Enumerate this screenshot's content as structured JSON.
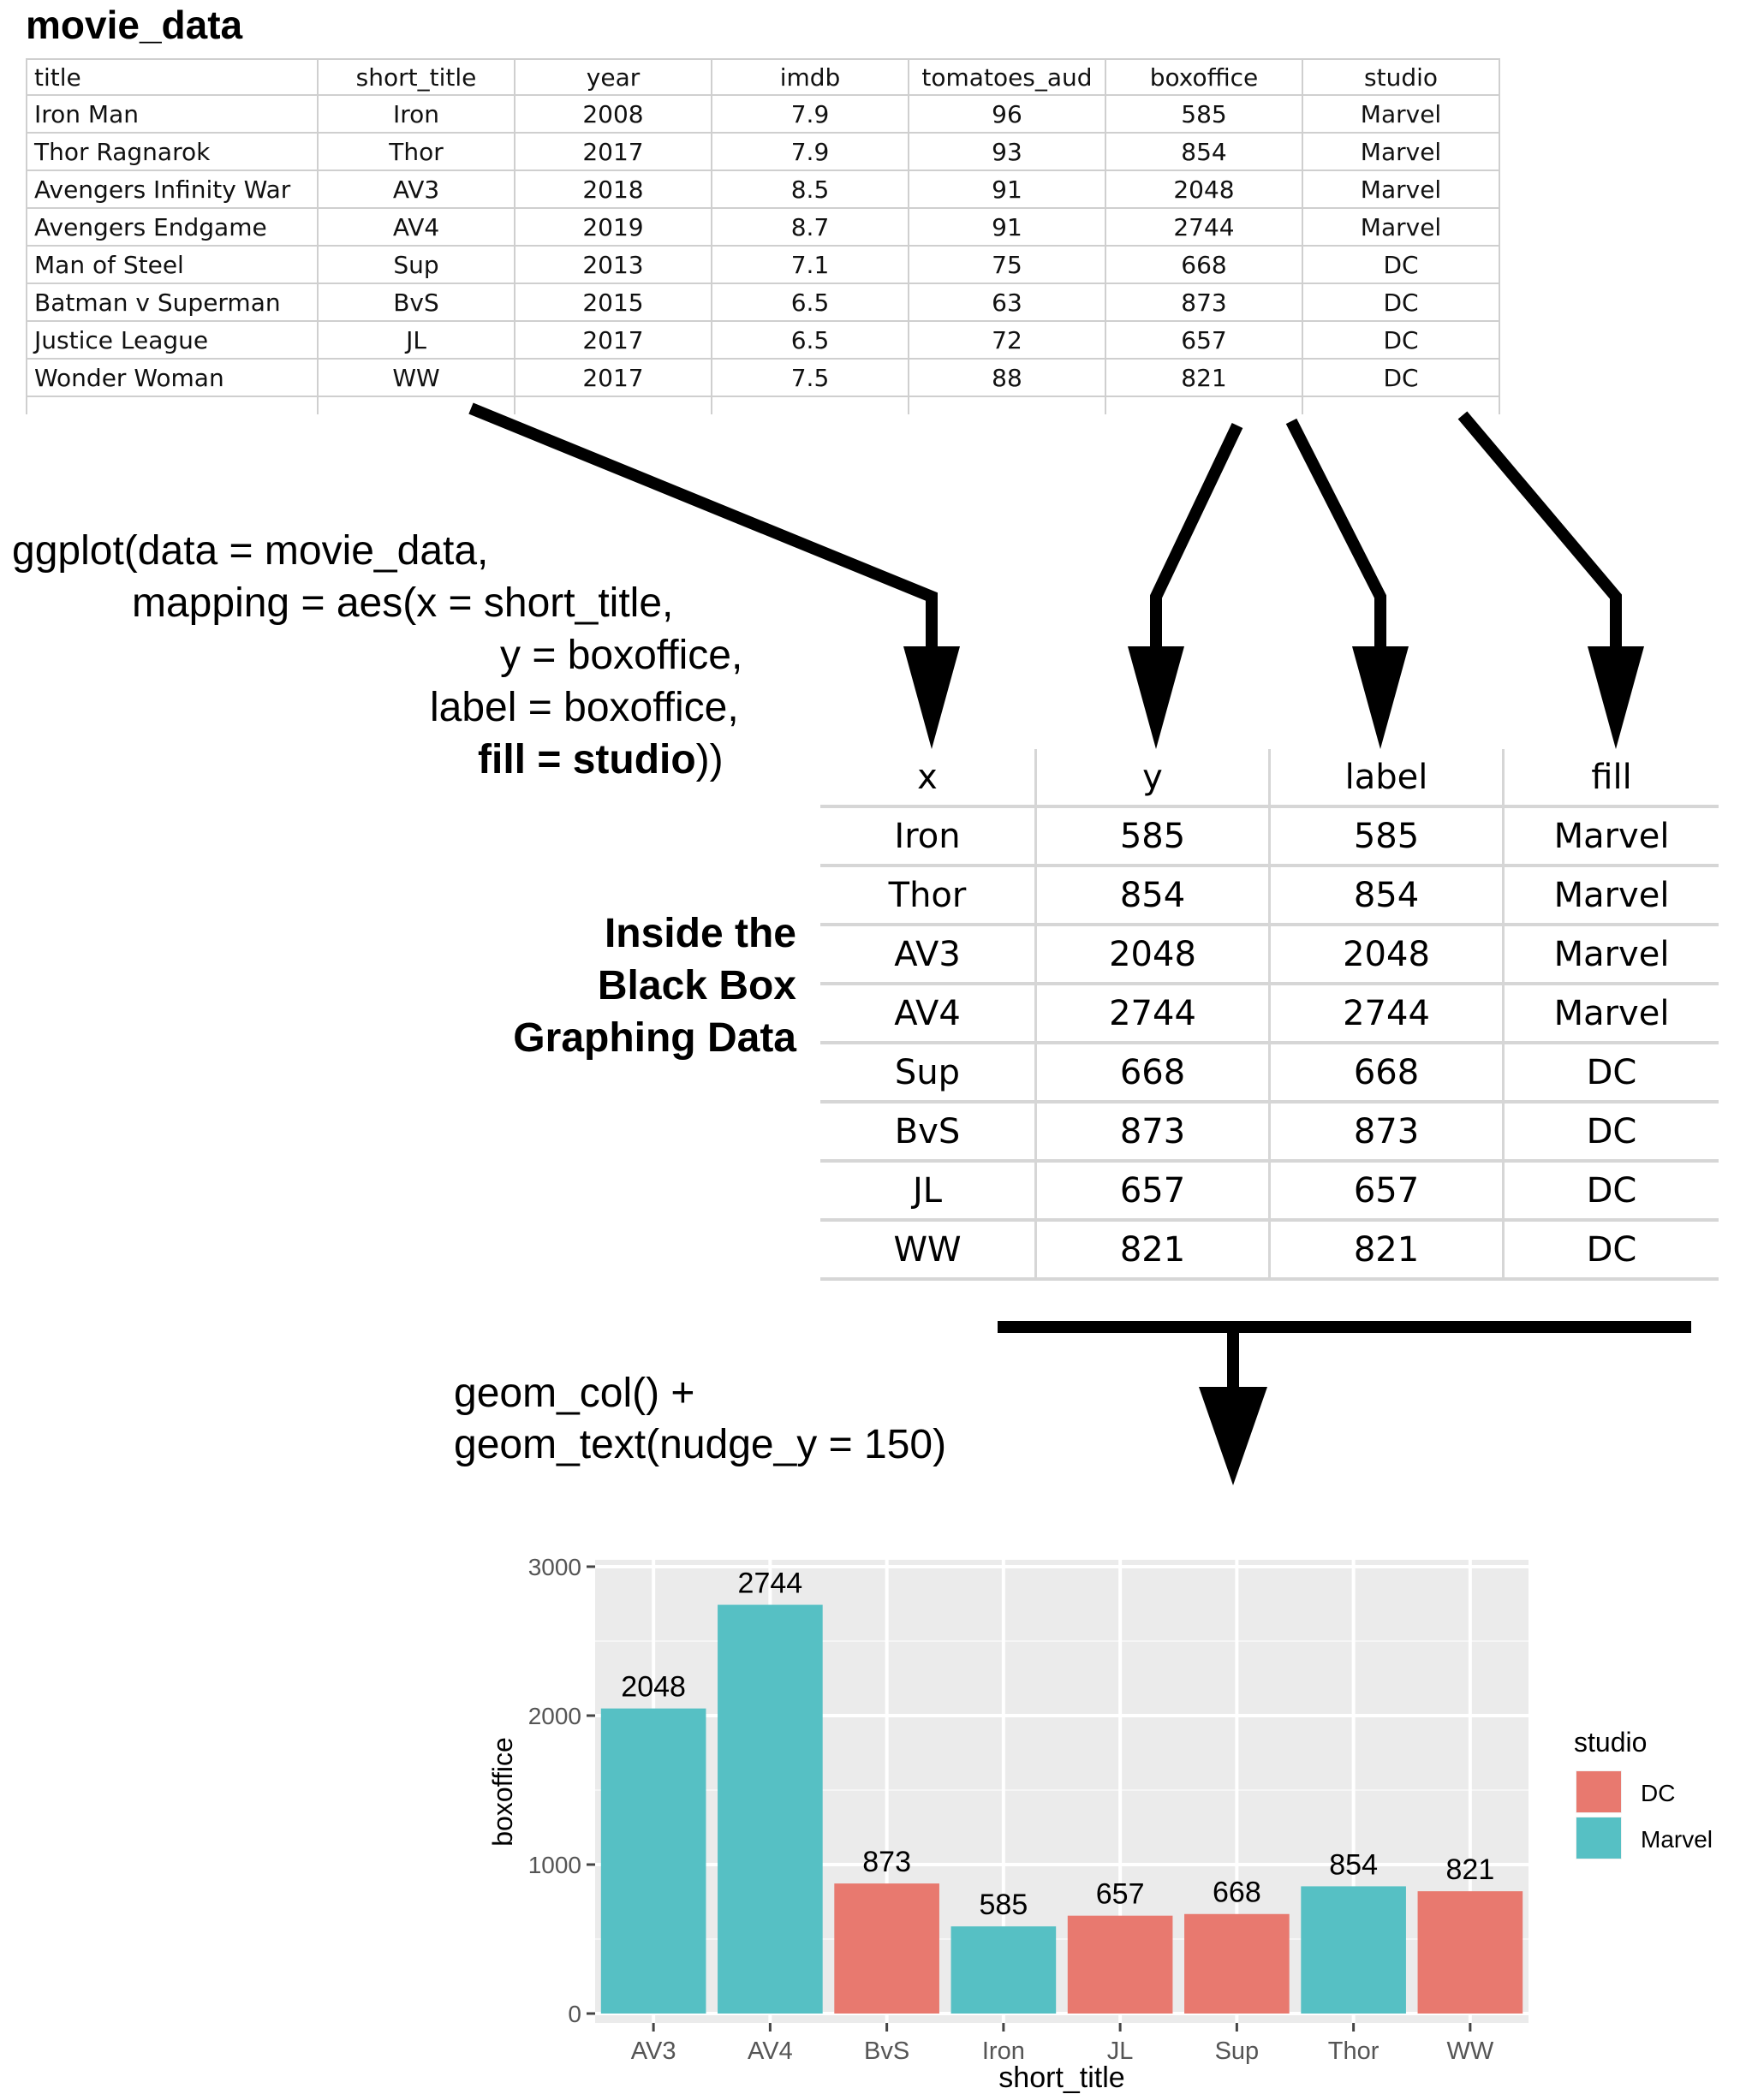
{
  "sheet": {
    "title": "movie_data",
    "columns": [
      "title",
      "short_title",
      "year",
      "imdb",
      "tomatoes_aud",
      "boxoffice",
      "studio"
    ],
    "rows": [
      [
        "Iron Man",
        "Iron",
        "2008",
        "7.9",
        "96",
        "585",
        "Marvel"
      ],
      [
        "Thor Ragnarok",
        "Thor",
        "2017",
        "7.9",
        "93",
        "854",
        "Marvel"
      ],
      [
        "Avengers Infinity War",
        "AV3",
        "2018",
        "8.5",
        "91",
        "2048",
        "Marvel"
      ],
      [
        "Avengers Endgame",
        "AV4",
        "2019",
        "8.7",
        "91",
        "2744",
        "Marvel"
      ],
      [
        "Man of Steel",
        "Sup",
        "2013",
        "7.1",
        "75",
        "668",
        "DC"
      ],
      [
        "Batman v Superman",
        "BvS",
        "2015",
        "6.5",
        "63",
        "873",
        "DC"
      ],
      [
        "Justice League",
        "JL",
        "2017",
        "6.5",
        "72",
        "657",
        "DC"
      ],
      [
        "Wonder Woman",
        "WW",
        "2017",
        "7.5",
        "88",
        "821",
        "DC"
      ]
    ]
  },
  "code": {
    "line1": "ggplot(data = movie_data,",
    "line2": "mapping = aes(x = short_title,",
    "line3": "y = boxoffice,",
    "line4": "label = boxoffice,",
    "line5_bold": "fill = studio",
    "line5_tail": "))",
    "geom1": "geom_col() +",
    "geom2": "geom_text(nudge_y = 150)"
  },
  "black_box": [
    "Inside the",
    "Black Box",
    "Graphing Data"
  ],
  "mapped": {
    "columns": [
      "x",
      "y",
      "label",
      "fill"
    ],
    "rows": [
      [
        "Iron",
        "585",
        "585",
        "Marvel"
      ],
      [
        "Thor",
        "854",
        "854",
        "Marvel"
      ],
      [
        "AV3",
        "2048",
        "2048",
        "Marvel"
      ],
      [
        "AV4",
        "2744",
        "2744",
        "Marvel"
      ],
      [
        "Sup",
        "668",
        "668",
        "DC"
      ],
      [
        "BvS",
        "873",
        "873",
        "DC"
      ],
      [
        "JL",
        "657",
        "657",
        "DC"
      ],
      [
        "WW",
        "821",
        "821",
        "DC"
      ]
    ]
  },
  "chart_data": {
    "type": "bar",
    "categories": [
      "AV3",
      "AV4",
      "BvS",
      "Iron",
      "JL",
      "Sup",
      "Thor",
      "WW"
    ],
    "values": [
      2048,
      2744,
      873,
      585,
      657,
      668,
      854,
      821
    ],
    "groups": [
      "Marvel",
      "Marvel",
      "DC",
      "Marvel",
      "DC",
      "DC",
      "Marvel",
      "DC"
    ],
    "data_labels": [
      "2048",
      "2744",
      "873",
      "585",
      "657",
      "668",
      "854",
      "821"
    ],
    "xlabel": "short_title",
    "ylabel": "boxoffice",
    "ylim": [
      0,
      3000
    ],
    "yticks": [
      0,
      1000,
      2000,
      3000
    ],
    "grid": true,
    "legend": {
      "title": "studio",
      "position": "right",
      "entries": [
        {
          "name": "DC",
          "color": "#E8796F"
        },
        {
          "name": "Marvel",
          "color": "#56C0C4"
        }
      ]
    }
  }
}
